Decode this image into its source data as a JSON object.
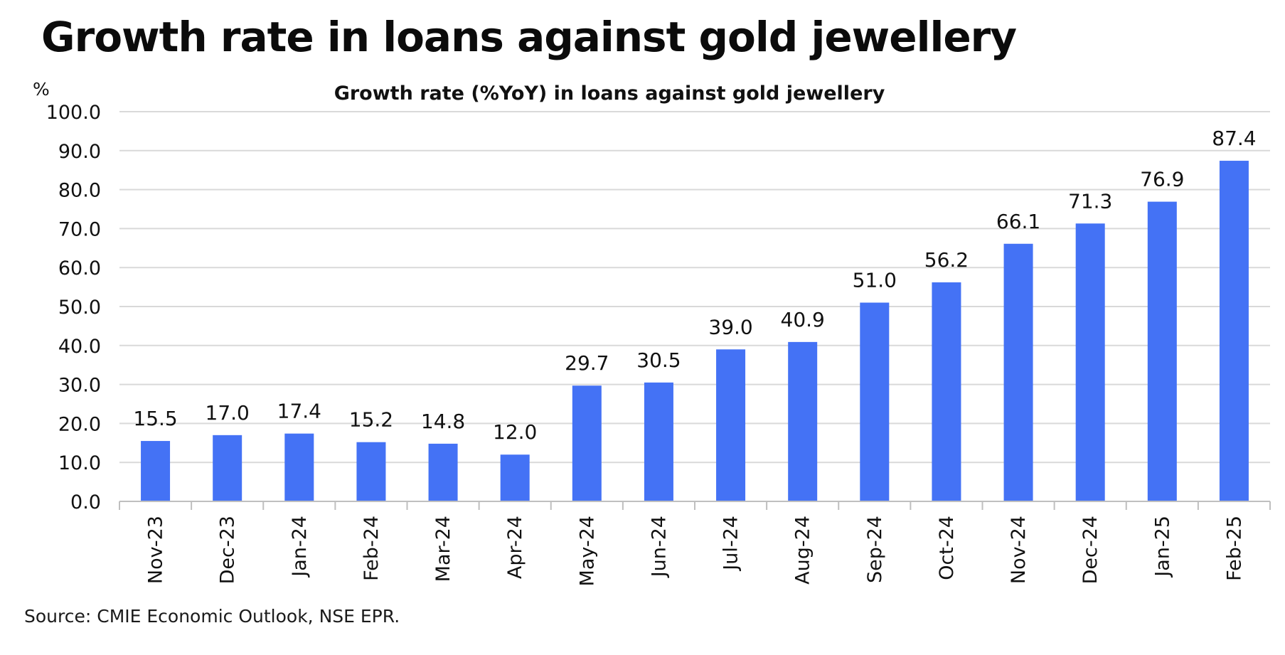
{
  "headline": "Growth rate in loans against gold jewellery",
  "source": "Source: CMIE Economic Outlook, NSE EPR.",
  "colors": {
    "bar": "#4472f5",
    "grid": "#d9d9d9",
    "axis": "#bfbfbf",
    "text": "#111111"
  },
  "chart_data": {
    "type": "bar",
    "title": "Growth rate (%YoY) in loans against gold jewellery",
    "ylabel": "%",
    "xlabel": "",
    "ylim": [
      0,
      100
    ],
    "yticks": [
      "0.0",
      "10.0",
      "20.0",
      "30.0",
      "40.0",
      "50.0",
      "60.0",
      "70.0",
      "80.0",
      "90.0",
      "100.0"
    ],
    "grid": true,
    "legend": "none",
    "categories": [
      "Nov-23",
      "Dec-23",
      "Jan-24",
      "Feb-24",
      "Mar-24",
      "Apr-24",
      "May-24",
      "Jun-24",
      "Jul-24",
      "Aug-24",
      "Sep-24",
      "Oct-24",
      "Nov-24",
      "Dec-24",
      "Jan-25",
      "Feb-25"
    ],
    "values": [
      15.5,
      17.0,
      17.4,
      15.2,
      14.8,
      12.0,
      29.7,
      30.5,
      39.0,
      40.9,
      51.0,
      56.2,
      66.1,
      71.3,
      76.9,
      87.4
    ],
    "value_labels": [
      "15.5",
      "17.0",
      "17.4",
      "15.2",
      "14.8",
      "12.0",
      "29.7",
      "30.5",
      "39.0",
      "40.9",
      "51.0",
      "56.2",
      "66.1",
      "71.3",
      "76.9",
      "87.4"
    ]
  }
}
